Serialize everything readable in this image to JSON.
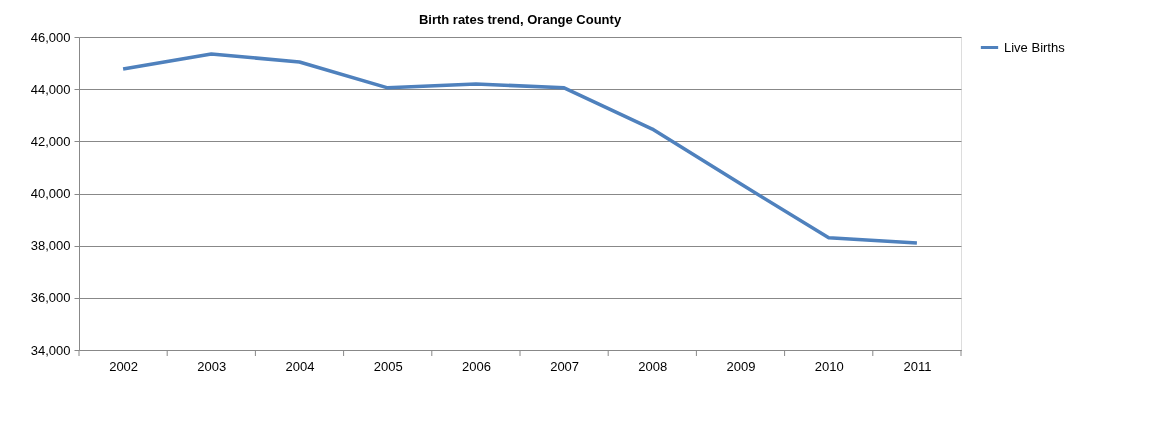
{
  "chart_data": {
    "type": "line",
    "title": "Birth rates trend, Orange County",
    "categories": [
      "2002",
      "2003",
      "2004",
      "2005",
      "2006",
      "2007",
      "2008",
      "2009",
      "2010",
      "2011"
    ],
    "series": [
      {
        "name": "Live Births",
        "color": "#4f81bd",
        "values": [
          44770,
          45350,
          45040,
          44050,
          44200,
          44050,
          42470,
          40370,
          38300,
          38100
        ]
      }
    ],
    "ylim": [
      34000,
      46000
    ],
    "yticks": [
      {
        "value": 34000,
        "label": "34,000"
      },
      {
        "value": 36000,
        "label": "36,000"
      },
      {
        "value": 38000,
        "label": "38,000"
      },
      {
        "value": 40000,
        "label": "40,000"
      },
      {
        "value": 42000,
        "label": "42,000"
      },
      {
        "value": 44000,
        "label": "44,000"
      },
      {
        "value": 46000,
        "label": "46,000"
      }
    ],
    "grid": "y",
    "legend": "right",
    "marker": "none",
    "line_style": "solid"
  }
}
